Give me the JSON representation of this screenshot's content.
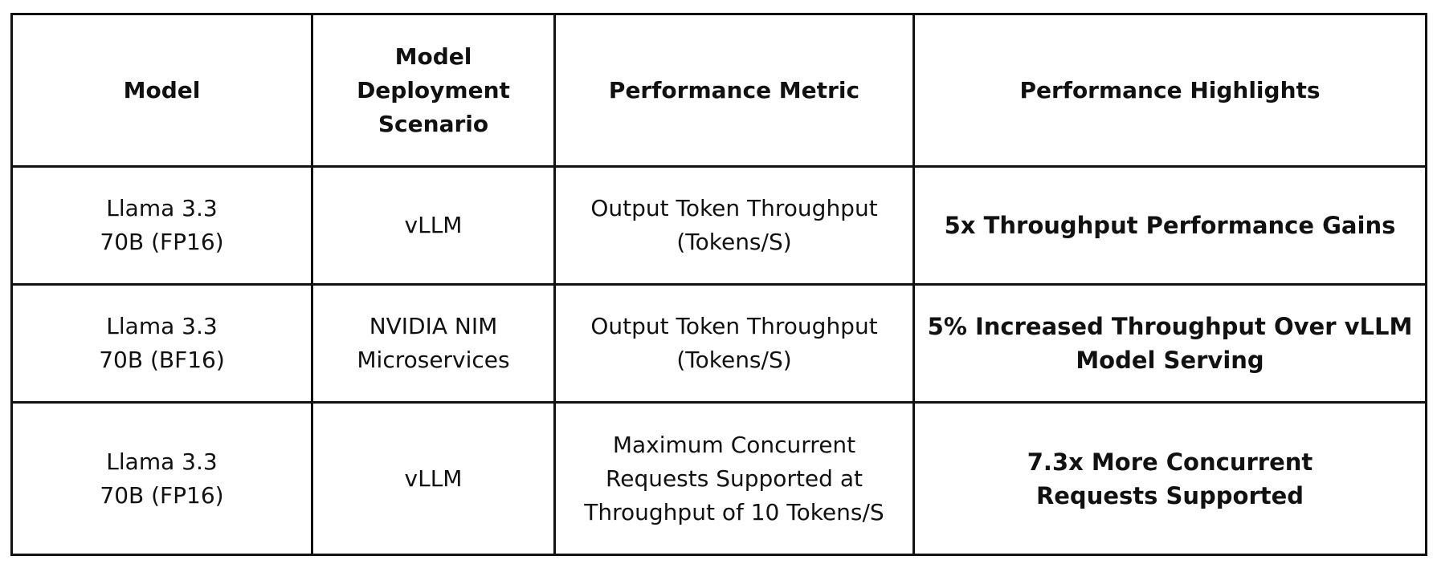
{
  "table": {
    "headers": [
      "Model",
      "Model Deployment Scenario",
      "Performance Metric",
      "Performance Highlights"
    ],
    "rows": [
      {
        "model": "Llama 3.3 70B (FP16)",
        "scenario": "vLLM",
        "metric": "Output Token Throughput (Tokens/S)",
        "highlight": "5x Throughput Performance Gains"
      },
      {
        "model": "Llama 3.3 70B (BF16)",
        "scenario": "NVIDIA NIM Microservices",
        "metric": "Output Token Throughput (Tokens/S)",
        "highlight": "5% Increased Throughput Over vLLM Model Serving"
      },
      {
        "model": "Llama 3.3 70B (FP16)",
        "scenario": "vLLM",
        "metric": "Maximum Concurrent Requests Supported at Throughput of 10 Tokens/S",
        "highlight": "7.3x More Concurrent Requests Supported"
      }
    ]
  }
}
